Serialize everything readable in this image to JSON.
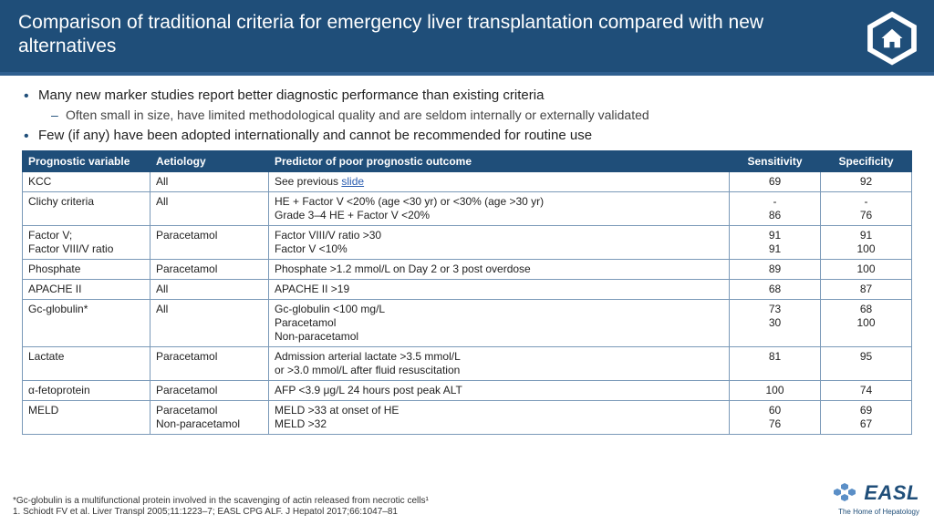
{
  "header": {
    "title": "Comparison of traditional criteria for emergency liver transplantation compared with new alternatives"
  },
  "bullets": [
    {
      "text": "Many new marker studies report better diagnostic performance than existing criteria",
      "sub": [
        "Often small in size, have limited methodological quality and are seldom internally or externally validated"
      ]
    },
    {
      "text": "Few (if any) have been adopted internationally and cannot be recommended for routine use",
      "sub": []
    }
  ],
  "table": {
    "columns": [
      "Prognostic variable",
      "Aetiology",
      "Predictor of poor prognostic outcome",
      "Sensitivity",
      "Specificity"
    ],
    "col_widths": [
      "140px",
      "130px",
      "auto",
      "100px",
      "100px"
    ],
    "header_bg": "#1f4e79",
    "header_fg": "#ffffff",
    "border_color": "#7a99b8",
    "link_text": "slide",
    "rows": [
      {
        "variable": [
          "KCC"
        ],
        "aetiology": [
          "All"
        ],
        "predictor": [
          "See previous ",
          {
            "link": "slide"
          }
        ],
        "sens": [
          "69"
        ],
        "spec": [
          "92"
        ]
      },
      {
        "variable": [
          "Clichy criteria"
        ],
        "aetiology": [
          "All"
        ],
        "predictor": [
          "HE + Factor V <20% (age <30 yr) or <30% (age >30 yr)",
          "Grade 3–4 HE + Factor V <20%"
        ],
        "sens": [
          "-",
          "86"
        ],
        "spec": [
          "-",
          "76"
        ]
      },
      {
        "variable": [
          "Factor V;",
          "Factor VIII/V ratio"
        ],
        "aetiology": [
          "Paracetamol"
        ],
        "predictor": [
          "Factor VIII/V ratio >30",
          "Factor V <10%"
        ],
        "sens": [
          "91",
          "91"
        ],
        "spec": [
          "91",
          "100"
        ]
      },
      {
        "variable": [
          "Phosphate"
        ],
        "aetiology": [
          "Paracetamol"
        ],
        "predictor": [
          "Phosphate >1.2 mmol/L on Day 2 or 3 post overdose"
        ],
        "sens": [
          "89"
        ],
        "spec": [
          "100"
        ]
      },
      {
        "variable": [
          "APACHE II"
        ],
        "aetiology": [
          "All"
        ],
        "predictor": [
          "APACHE II >19"
        ],
        "sens": [
          "68"
        ],
        "spec": [
          "87"
        ]
      },
      {
        "variable": [
          "Gc-globulin*"
        ],
        "aetiology": [
          "All"
        ],
        "predictor": [
          "Gc-globulin <100 mg/L",
          "Paracetamol",
          "Non-paracetamol"
        ],
        "sens": [
          "73",
          "30"
        ],
        "spec": [
          "68",
          "100"
        ]
      },
      {
        "variable": [
          "Lactate"
        ],
        "aetiology": [
          "Paracetamol"
        ],
        "predictor": [
          "Admission arterial lactate >3.5 mmol/L",
          "or >3.0 mmol/L after fluid resuscitation"
        ],
        "sens": [
          "81"
        ],
        "spec": [
          "95"
        ]
      },
      {
        "variable": [
          "α-fetoprotein"
        ],
        "aetiology": [
          "Paracetamol"
        ],
        "predictor": [
          "AFP <3.9 μg/L 24 hours post peak ALT"
        ],
        "sens": [
          "100"
        ],
        "spec": [
          "74"
        ]
      },
      {
        "variable": [
          "MELD"
        ],
        "aetiology": [
          "Paracetamol",
          "Non-paracetamol"
        ],
        "predictor": [
          "MELD >33 at onset of HE",
          "MELD >32"
        ],
        "sens": [
          "60",
          "76"
        ],
        "spec": [
          "69",
          "67"
        ]
      }
    ]
  },
  "footnote": {
    "line1": "*Gc-globulin is a multifunctional protein involved in the scavenging of actin released from necrotic cells¹",
    "line2": "1. Schiodt FV et al. Liver Transpl 2005;11:1223–7; EASL CPG ALF. J Hepatol 2017;66:1047–81"
  },
  "logo": {
    "brand": "EASL",
    "tagline": "The Home of Hepatology"
  },
  "colors": {
    "primary": "#1f4e79",
    "link": "#2a5db0"
  }
}
